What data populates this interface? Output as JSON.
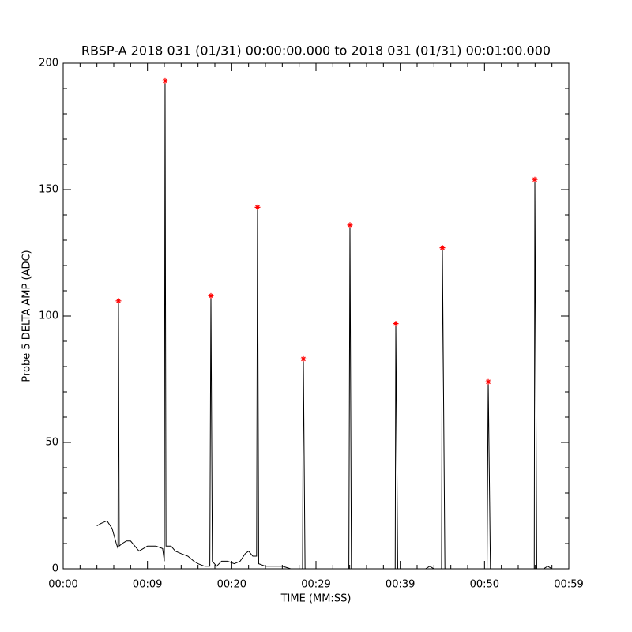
{
  "chart_data": {
    "type": "line",
    "title": "RBSP-A 2018 031 (01/31) 00:00:00.000 to 2018 031 (01/31) 00:01:00.000",
    "x_label": "TIME (MM:SS)",
    "y_label": "Probe 5 DELTA AMP (ADC)",
    "xlim": [
      0,
      60
    ],
    "ylim": [
      0,
      200
    ],
    "xticks": [
      {
        "value": 0,
        "label": "00:00"
      },
      {
        "value": 10,
        "label": "00:09"
      },
      {
        "value": 20,
        "label": "00:20"
      },
      {
        "value": 30,
        "label": "00:29"
      },
      {
        "value": 40,
        "label": "00:39"
      },
      {
        "value": 50,
        "label": "00:50"
      },
      {
        "value": 60,
        "label": "00:59"
      }
    ],
    "yticks": [
      {
        "value": 0,
        "label": "0"
      },
      {
        "value": 50,
        "label": "50"
      },
      {
        "value": 100,
        "label": "100"
      },
      {
        "value": 150,
        "label": "150"
      },
      {
        "value": 200,
        "label": "200"
      }
    ],
    "minor_per_major": 5,
    "series": [
      {
        "color": "#000000",
        "x": [
          4.0,
          4.5,
          5.2,
          5.8,
          6.3,
          6.5,
          6.56,
          6.65,
          7.0,
          7.5,
          8.0,
          8.5,
          9.0,
          9.5,
          10.0,
          11.0,
          11.8,
          12.0,
          12.09,
          12.2,
          12.8,
          13.3,
          14.0,
          14.8,
          15.5,
          16.0,
          16.8,
          17.4,
          17.53,
          17.7,
          18.2,
          18.8,
          19.5,
          20.3,
          21.0,
          21.6,
          22.0,
          22.5,
          22.95,
          23.06,
          23.2,
          24.0,
          25.0,
          26.0,
          27.0,
          28.4,
          28.5,
          28.7,
          30.0,
          33.9,
          34.03,
          34.2,
          39.4,
          39.47,
          39.7,
          43.0,
          43.5,
          44.0,
          44.9,
          45.0,
          45.3,
          50.3,
          50.44,
          50.7,
          55.9,
          55.97,
          56.2,
          57.0,
          57.5,
          58.0
        ],
        "values": [
          17,
          18,
          19,
          16,
          10,
          8,
          106,
          9,
          10,
          11,
          11,
          9,
          7,
          8,
          9,
          9,
          8,
          3,
          193,
          9,
          9,
          7,
          6,
          5,
          3,
          2,
          1,
          1,
          108,
          3,
          1,
          3,
          3,
          2,
          3,
          6,
          7,
          5,
          5,
          143,
          2,
          1,
          1,
          1,
          0,
          0,
          83,
          0,
          0,
          0,
          136,
          0,
          0,
          97,
          0,
          0,
          1,
          0,
          0,
          127,
          0,
          0,
          74,
          0,
          0,
          154,
          0,
          0,
          1,
          0
        ]
      },
      {
        "color": "#ff0000",
        "marker": "asterisk",
        "x": [
          6.56,
          12.09,
          17.53,
          23.06,
          28.5,
          34.03,
          39.47,
          45.0,
          50.44,
          55.97
        ],
        "values": [
          106,
          193,
          108,
          143,
          83,
          136,
          97,
          127,
          74,
          154
        ]
      }
    ]
  }
}
